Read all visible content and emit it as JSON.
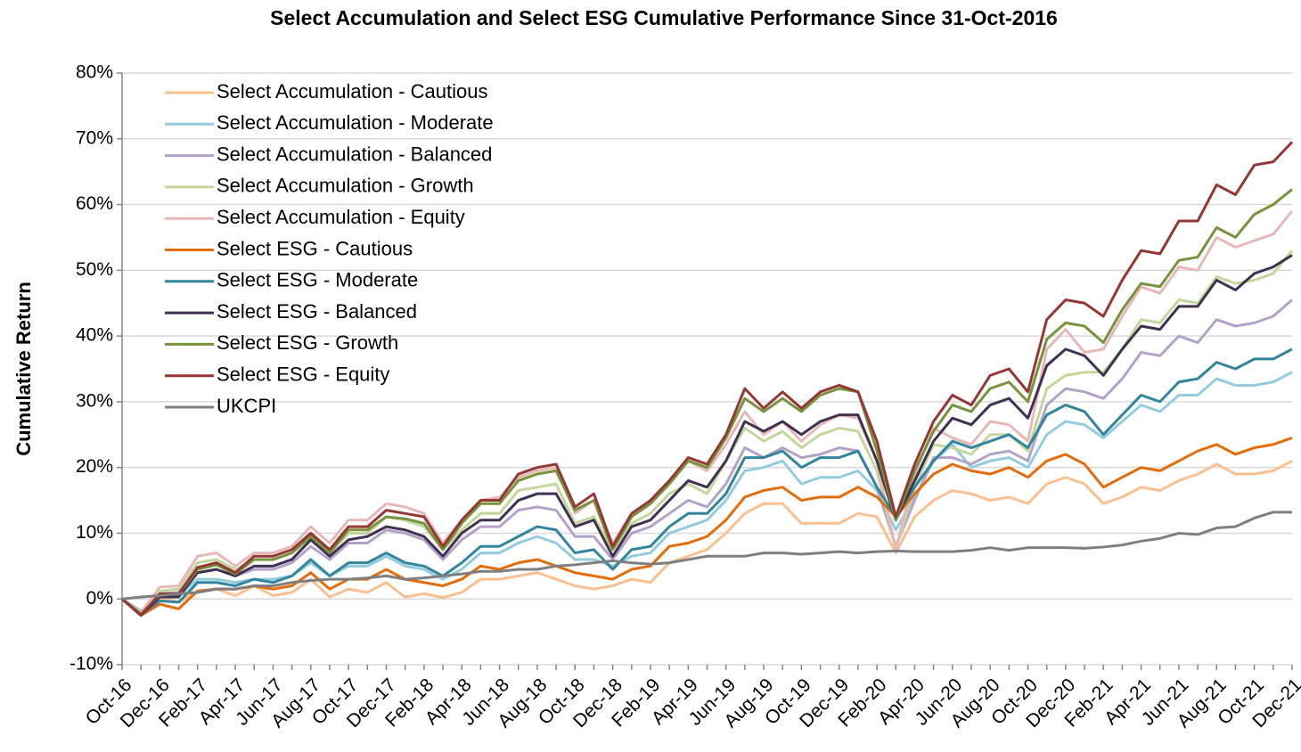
{
  "chart_data": {
    "type": "line",
    "title": "Select Accumulation  and Select ESG Cumulative Performance Since 31-Oct-2016",
    "y_label": "Cumulative Return",
    "categories": [
      "Oct-16",
      null,
      "Dec-16",
      null,
      "Feb-17",
      null,
      "Apr-17",
      null,
      "Jun-17",
      null,
      "Aug-17",
      null,
      "Oct-17",
      null,
      "Dec-17",
      null,
      "Feb-18",
      null,
      "Apr-18",
      null,
      "Jun-18",
      null,
      "Aug-18",
      null,
      "Oct-18",
      null,
      "Dec-18",
      null,
      "Feb-19",
      null,
      "Apr-19",
      null,
      "Jun-19",
      null,
      "Aug-19",
      null,
      "Oct-19",
      null,
      "Dec-19",
      null,
      "Feb-20",
      null,
      "Apr-20",
      null,
      "Jun-20",
      null,
      "Aug-20",
      null,
      "Oct-20",
      null,
      "Dec-20",
      null,
      "Feb-21",
      null,
      "Apr-21",
      null,
      "Jun-21",
      null,
      "Aug-21",
      null,
      "Oct-21",
      null,
      "Dec-21"
    ],
    "ylim": [
      -10,
      80
    ],
    "yticks": [
      {
        "value": -10,
        "label": "-10%"
      },
      {
        "value": 0,
        "label": "0%"
      },
      {
        "value": 10,
        "label": "10%"
      },
      {
        "value": 20,
        "label": "20%"
      },
      {
        "value": 30,
        "label": "30%"
      },
      {
        "value": 40,
        "label": "40%"
      },
      {
        "value": 50,
        "label": "50%"
      },
      {
        "value": 60,
        "label": "60%"
      },
      {
        "value": 70,
        "label": "70%"
      },
      {
        "value": 80,
        "label": "80%"
      }
    ],
    "grid": true,
    "legend": "upper left",
    "series": [
      {
        "name": "Select Accumulation - Cautious",
        "color": "#fac090",
        "values": [
          0,
          -1.8,
          0.2,
          -0.5,
          1.2,
          1.5,
          0.5,
          2,
          0.5,
          1,
          3,
          0.3,
          1.5,
          1,
          2.5,
          0.3,
          0.8,
          0.2,
          1,
          3,
          3,
          3.5,
          4,
          3,
          2,
          1.5,
          2,
          3,
          2.5,
          5.5,
          6.5,
          7.5,
          10,
          13,
          14.5,
          14.5,
          11.5,
          11.5,
          11.5,
          13,
          12.5,
          7,
          12.5,
          15,
          16.5,
          16,
          15,
          15.5,
          14.5,
          17.5,
          18.5,
          17.5,
          14.5,
          15.5,
          17,
          16.5,
          18,
          19,
          20.5,
          19,
          19,
          19.5,
          21
        ]
      },
      {
        "name": "Select Accumulation - Moderate",
        "color": "#93cddd",
        "values": [
          0,
          -1.8,
          0.3,
          0.5,
          3,
          3,
          2.5,
          3,
          3,
          3.5,
          5.5,
          3.5,
          5,
          5,
          6.5,
          5,
          4.5,
          3,
          4.5,
          7,
          7,
          8.5,
          9.5,
          8.5,
          6,
          6,
          5,
          6.5,
          7,
          10,
          11,
          12,
          15,
          19.5,
          20,
          21,
          17.5,
          18.5,
          18.5,
          19.5,
          16.5,
          10.5,
          15.5,
          21,
          23.5,
          20,
          21,
          21.5,
          20,
          25,
          27,
          26.5,
          24.5,
          27,
          29.5,
          28.5,
          31,
          31,
          33.5,
          32.5,
          32.5,
          33,
          34.5
        ]
      },
      {
        "name": "Select Accumulation - Balanced",
        "color": "#b3a2c7",
        "values": [
          0,
          -2,
          0.8,
          1,
          4,
          4.5,
          3.5,
          4.5,
          4.5,
          5.5,
          8,
          6,
          8.5,
          8.5,
          10.5,
          10,
          9,
          6,
          9,
          11,
          11,
          13.5,
          14,
          13.5,
          9.5,
          9.5,
          6,
          10,
          11,
          13,
          15,
          14,
          17.5,
          23,
          21.5,
          23,
          21.5,
          22,
          23,
          22.5,
          17,
          8,
          15,
          21.5,
          21.5,
          20.5,
          22,
          22.5,
          21,
          29.5,
          32,
          31.5,
          30.5,
          33.5,
          37.5,
          37,
          40,
          39,
          42.5,
          41.5,
          42,
          43,
          45.5
        ]
      },
      {
        "name": "Select Accumulation - Growth",
        "color": "#c3d69b",
        "values": [
          0,
          -2,
          1.2,
          1.5,
          5.5,
          6,
          4.5,
          6,
          6,
          7,
          9.5,
          7,
          10,
          10,
          12.5,
          12,
          11,
          7.5,
          10.5,
          13,
          13,
          16.5,
          17,
          17.5,
          11.5,
          12.5,
          7.5,
          11.5,
          13,
          16,
          17.5,
          16,
          21,
          26,
          24,
          25.5,
          23,
          25,
          26,
          25.5,
          19.5,
          7.5,
          17,
          23.5,
          23,
          22,
          25,
          25,
          22.5,
          32,
          34,
          34.5,
          34.5,
          38,
          42.5,
          42,
          45.5,
          45,
          49,
          48,
          48.5,
          49.5,
          53
        ]
      },
      {
        "name": "Select Accumulation - Equity",
        "color": "#e6b9b8",
        "values": [
          0,
          -2,
          1.8,
          2,
          6.5,
          7,
          5,
          7,
          7,
          8,
          11,
          8.5,
          12,
          12,
          14.5,
          14,
          13,
          8.5,
          12,
          15,
          15.5,
          18.5,
          19.5,
          20,
          13,
          15,
          8.5,
          13,
          14.5,
          17.5,
          21,
          19.5,
          23.5,
          28.5,
          25,
          27,
          24,
          26.5,
          28,
          27.5,
          21,
          7.5,
          19,
          26,
          24.5,
          23.5,
          27,
          26.5,
          24,
          38,
          41,
          37.5,
          38,
          43,
          47.5,
          46.5,
          50.5,
          50,
          55,
          53.5,
          54.5,
          55.5,
          59
        ]
      },
      {
        "name": "Select ESG - Cautious",
        "color": "#e46c0a",
        "values": [
          0,
          -2.5,
          -0.8,
          -1.5,
          1.2,
          1.5,
          1.5,
          2,
          1.5,
          2,
          4,
          1.5,
          3,
          3,
          4.5,
          3,
          2.5,
          2,
          3,
          5,
          4.5,
          5.5,
          6,
          5,
          4,
          3.5,
          3,
          4.5,
          5,
          8,
          8.5,
          9.5,
          12,
          15.5,
          16.5,
          17,
          15,
          15.5,
          15.5,
          17,
          15.5,
          12.5,
          16,
          19,
          20.5,
          19.5,
          19,
          20,
          18.5,
          21,
          22,
          20.5,
          17,
          18.5,
          20,
          19.5,
          21,
          22.5,
          23.5,
          22,
          23,
          23.5,
          24.5
        ]
      },
      {
        "name": "Select ESG - Moderate",
        "color": "#31859c",
        "values": [
          0,
          -2.3,
          -0.3,
          -0.5,
          2.5,
          2.5,
          2,
          3,
          2.5,
          3.5,
          6,
          3.5,
          5.5,
          5.5,
          7,
          5.5,
          5,
          3.5,
          5.5,
          8,
          8,
          9.5,
          11,
          10.5,
          7,
          7.5,
          4.5,
          7.5,
          8,
          11,
          13,
          13,
          16,
          21.5,
          21.5,
          22.5,
          20,
          21.5,
          21.5,
          22.5,
          17,
          12.5,
          17,
          21,
          24,
          23,
          24,
          25,
          23,
          28,
          29.5,
          28.5,
          25,
          28,
          31,
          30,
          33,
          33.5,
          36,
          35,
          36.5,
          36.5,
          38
        ]
      },
      {
        "name": "Select ESG - Balanced",
        "color": "#403152",
        "values": [
          0,
          -2.5,
          0.3,
          0.3,
          4,
          4.5,
          3.5,
          5,
          5,
          6,
          9,
          6.5,
          9,
          9.5,
          11,
          10.5,
          9.5,
          6.5,
          10,
          12,
          12,
          15,
          16,
          16,
          11,
          12,
          6.5,
          11,
          12,
          15,
          18,
          17,
          21,
          27,
          25.5,
          27,
          25,
          27,
          28,
          28,
          21,
          12,
          18,
          24,
          27.5,
          26.5,
          29.5,
          30.5,
          27.5,
          35.5,
          38,
          37,
          34,
          38,
          41.5,
          41,
          44.5,
          44.5,
          48.5,
          47,
          49.5,
          50.5,
          52.3
        ]
      },
      {
        "name": "Select ESG - Growth",
        "color": "#77933c",
        "values": [
          0,
          -2.3,
          0.7,
          0.7,
          4.5,
          5.2,
          3.8,
          6,
          6,
          7,
          9.5,
          7,
          10.5,
          10.5,
          12.5,
          12.2,
          11.5,
          7.5,
          11.5,
          14.5,
          14.5,
          18,
          19,
          19.5,
          13.5,
          15,
          7.5,
          12.5,
          14.5,
          17.5,
          21,
          20,
          24.5,
          30.5,
          28.5,
          30.5,
          28.5,
          31,
          32,
          31.5,
          22.5,
          12,
          19.5,
          25.5,
          29.5,
          28.5,
          32,
          33,
          30,
          39.5,
          42,
          41.5,
          39,
          44,
          48,
          47.5,
          51.5,
          52,
          56.5,
          55,
          58.5,
          60,
          62.3
        ]
      },
      {
        "name": "Select ESG - Equity",
        "color": "#953735",
        "values": [
          0,
          -2.5,
          0.8,
          0.8,
          4.8,
          5.5,
          4,
          6.5,
          6.5,
          7.5,
          10,
          7.5,
          11,
          11,
          13.5,
          13,
          12.5,
          8,
          12,
          15,
          15,
          19,
          20,
          20.5,
          14,
          16,
          8,
          13,
          15,
          18,
          21.5,
          20.5,
          25,
          32,
          29,
          31.5,
          29,
          31.5,
          32.5,
          31.5,
          24,
          12.5,
          20.5,
          27,
          31,
          29.5,
          34,
          35,
          31.5,
          42.5,
          45.5,
          45,
          43,
          48.5,
          53,
          52.5,
          57.5,
          57.5,
          63,
          61.5,
          66,
          66.5,
          69.5
        ]
      },
      {
        "name": "UKCPI",
        "color": "#7f7f7f",
        "values": [
          0,
          0.3,
          0.5,
          0.8,
          1,
          1.5,
          1.5,
          2,
          2,
          2.5,
          2.8,
          3,
          3,
          3.2,
          3.5,
          3,
          3.2,
          3.5,
          3.8,
          4.2,
          4.2,
          4.5,
          4.5,
          5,
          5.2,
          5.5,
          5.8,
          5.5,
          5.3,
          5.5,
          6,
          6.5,
          6.5,
          6.5,
          7,
          7,
          6.8,
          7,
          7.2,
          7,
          7.2,
          7.3,
          7.2,
          7.2,
          7.2,
          7.4,
          7.8,
          7.4,
          7.8,
          7.8,
          7.8,
          7.7,
          7.9,
          8.2,
          8.8,
          9.2,
          10,
          9.8,
          10.8,
          11,
          12.3,
          13.2,
          13.2
        ]
      }
    ]
  }
}
